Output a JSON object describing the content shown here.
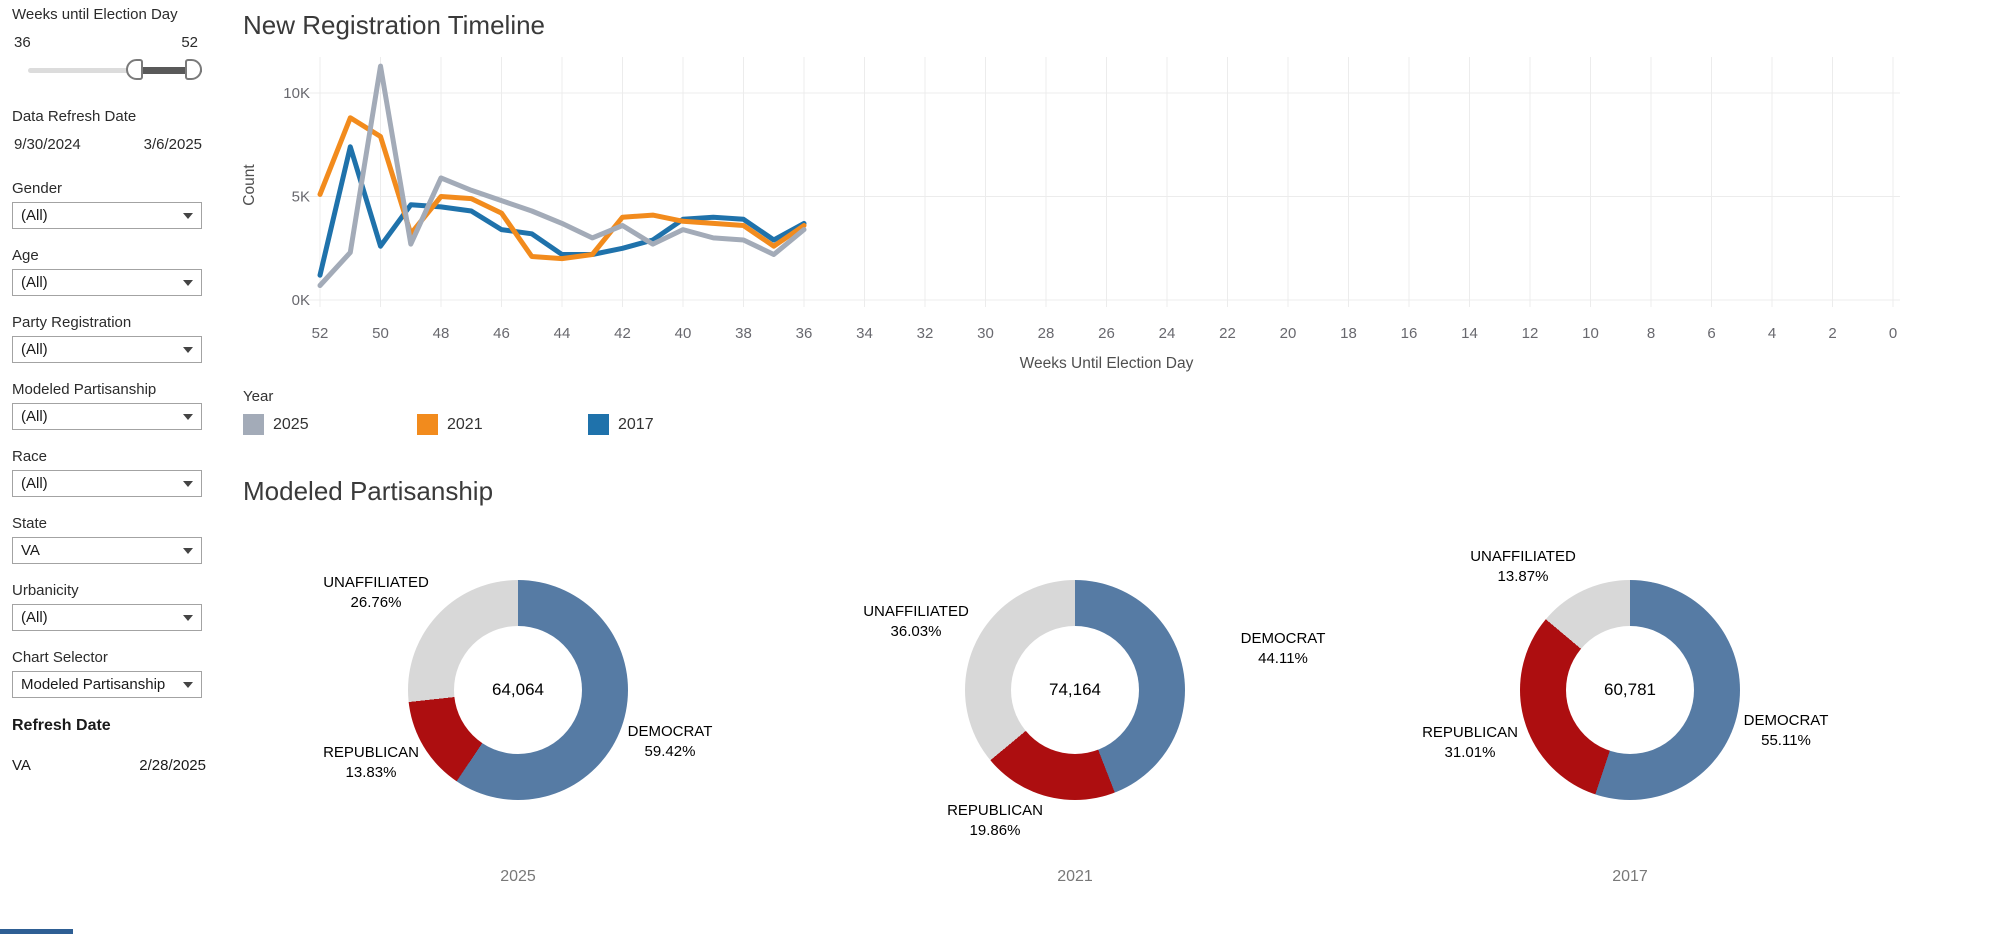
{
  "sidebar": {
    "week_filter": {
      "title": "Weeks until Election Day",
      "min_label": "36",
      "max_label": "52"
    },
    "date_filter": {
      "title": "Data Refresh Date",
      "start": "9/30/2024",
      "end": "3/6/2025"
    },
    "dropdowns": [
      {
        "label": "Gender",
        "value": "(All)"
      },
      {
        "label": "Age",
        "value": "(All)"
      },
      {
        "label": "Party Registration",
        "value": "(All)"
      },
      {
        "label": "Modeled Partisanship",
        "value": "(All)"
      },
      {
        "label": "Race",
        "value": "(All)"
      },
      {
        "label": "State",
        "value": "VA"
      },
      {
        "label": "Urbanicity",
        "value": "(All)"
      },
      {
        "label": "Chart Selector",
        "value": "Modeled Partisanship"
      }
    ],
    "refresh": {
      "title": "Refresh Date",
      "state": "VA",
      "date": "2/28/2025"
    }
  },
  "chart_data": [
    {
      "type": "line",
      "title": "New Registration Timeline",
      "xlabel": "Weeks Until Election Day",
      "ylabel": "Count",
      "y_unit": "K",
      "legend_title": "Year",
      "legend_position": "bottom-left",
      "grid": true,
      "x_axis_reversed": true,
      "xlim": [
        52,
        0
      ],
      "ylim": [
        0,
        12
      ],
      "x_ticks": [
        52,
        50,
        48,
        46,
        44,
        42,
        40,
        38,
        36,
        34,
        32,
        30,
        28,
        26,
        24,
        22,
        20,
        18,
        16,
        14,
        12,
        10,
        8,
        6,
        4,
        2,
        0
      ],
      "y_ticks": [
        "0K",
        "5K",
        "10K"
      ],
      "x": [
        52,
        51,
        50,
        49,
        48,
        47,
        46,
        45,
        44,
        43,
        42,
        41,
        40,
        39,
        38,
        37,
        36
      ],
      "series": [
        {
          "name": "2025",
          "color": "#a3abb8",
          "values": [
            0.7,
            2.3,
            11.3,
            2.7,
            5.9,
            5.3,
            4.8,
            4.3,
            3.7,
            3.0,
            3.6,
            2.7,
            3.4,
            3.0,
            2.9,
            2.2,
            3.4
          ]
        },
        {
          "name": "2021",
          "color": "#f28b1d",
          "values": [
            5.1,
            8.8,
            7.9,
            3.2,
            5.0,
            4.9,
            4.2,
            2.1,
            2.0,
            2.2,
            4.0,
            4.1,
            3.8,
            3.7,
            3.6,
            2.6,
            3.6
          ]
        },
        {
          "name": "2017",
          "color": "#1f72ab",
          "values": [
            1.2,
            7.4,
            2.6,
            4.6,
            4.5,
            4.3,
            3.4,
            3.2,
            2.2,
            2.2,
            2.5,
            2.9,
            3.9,
            4.0,
            3.9,
            2.9,
            3.7
          ]
        }
      ]
    },
    {
      "type": "pie",
      "subtype": "donut",
      "title": "Modeled Partisanship",
      "colors": {
        "DEMOCRAT": "#567ba4",
        "REPUBLICAN": "#ad0e10",
        "UNAFFILIATED": "#d8d8d8"
      },
      "donuts": [
        {
          "year": "2025",
          "total": "64,064",
          "slices": [
            {
              "label": "DEMOCRAT",
              "pct": 59.42
            },
            {
              "label": "REPUBLICAN",
              "pct": 13.83
            },
            {
              "label": "UNAFFILIATED",
              "pct": 26.76
            }
          ]
        },
        {
          "year": "2021",
          "total": "74,164",
          "slices": [
            {
              "label": "DEMOCRAT",
              "pct": 44.11
            },
            {
              "label": "REPUBLICAN",
              "pct": 19.86
            },
            {
              "label": "UNAFFILIATED",
              "pct": 36.03
            }
          ]
        },
        {
          "year": "2017",
          "total": "60,781",
          "slices": [
            {
              "label": "DEMOCRAT",
              "pct": 55.11
            },
            {
              "label": "REPUBLICAN",
              "pct": 31.01
            },
            {
              "label": "UNAFFILIATED",
              "pct": 13.87
            }
          ]
        }
      ]
    }
  ]
}
